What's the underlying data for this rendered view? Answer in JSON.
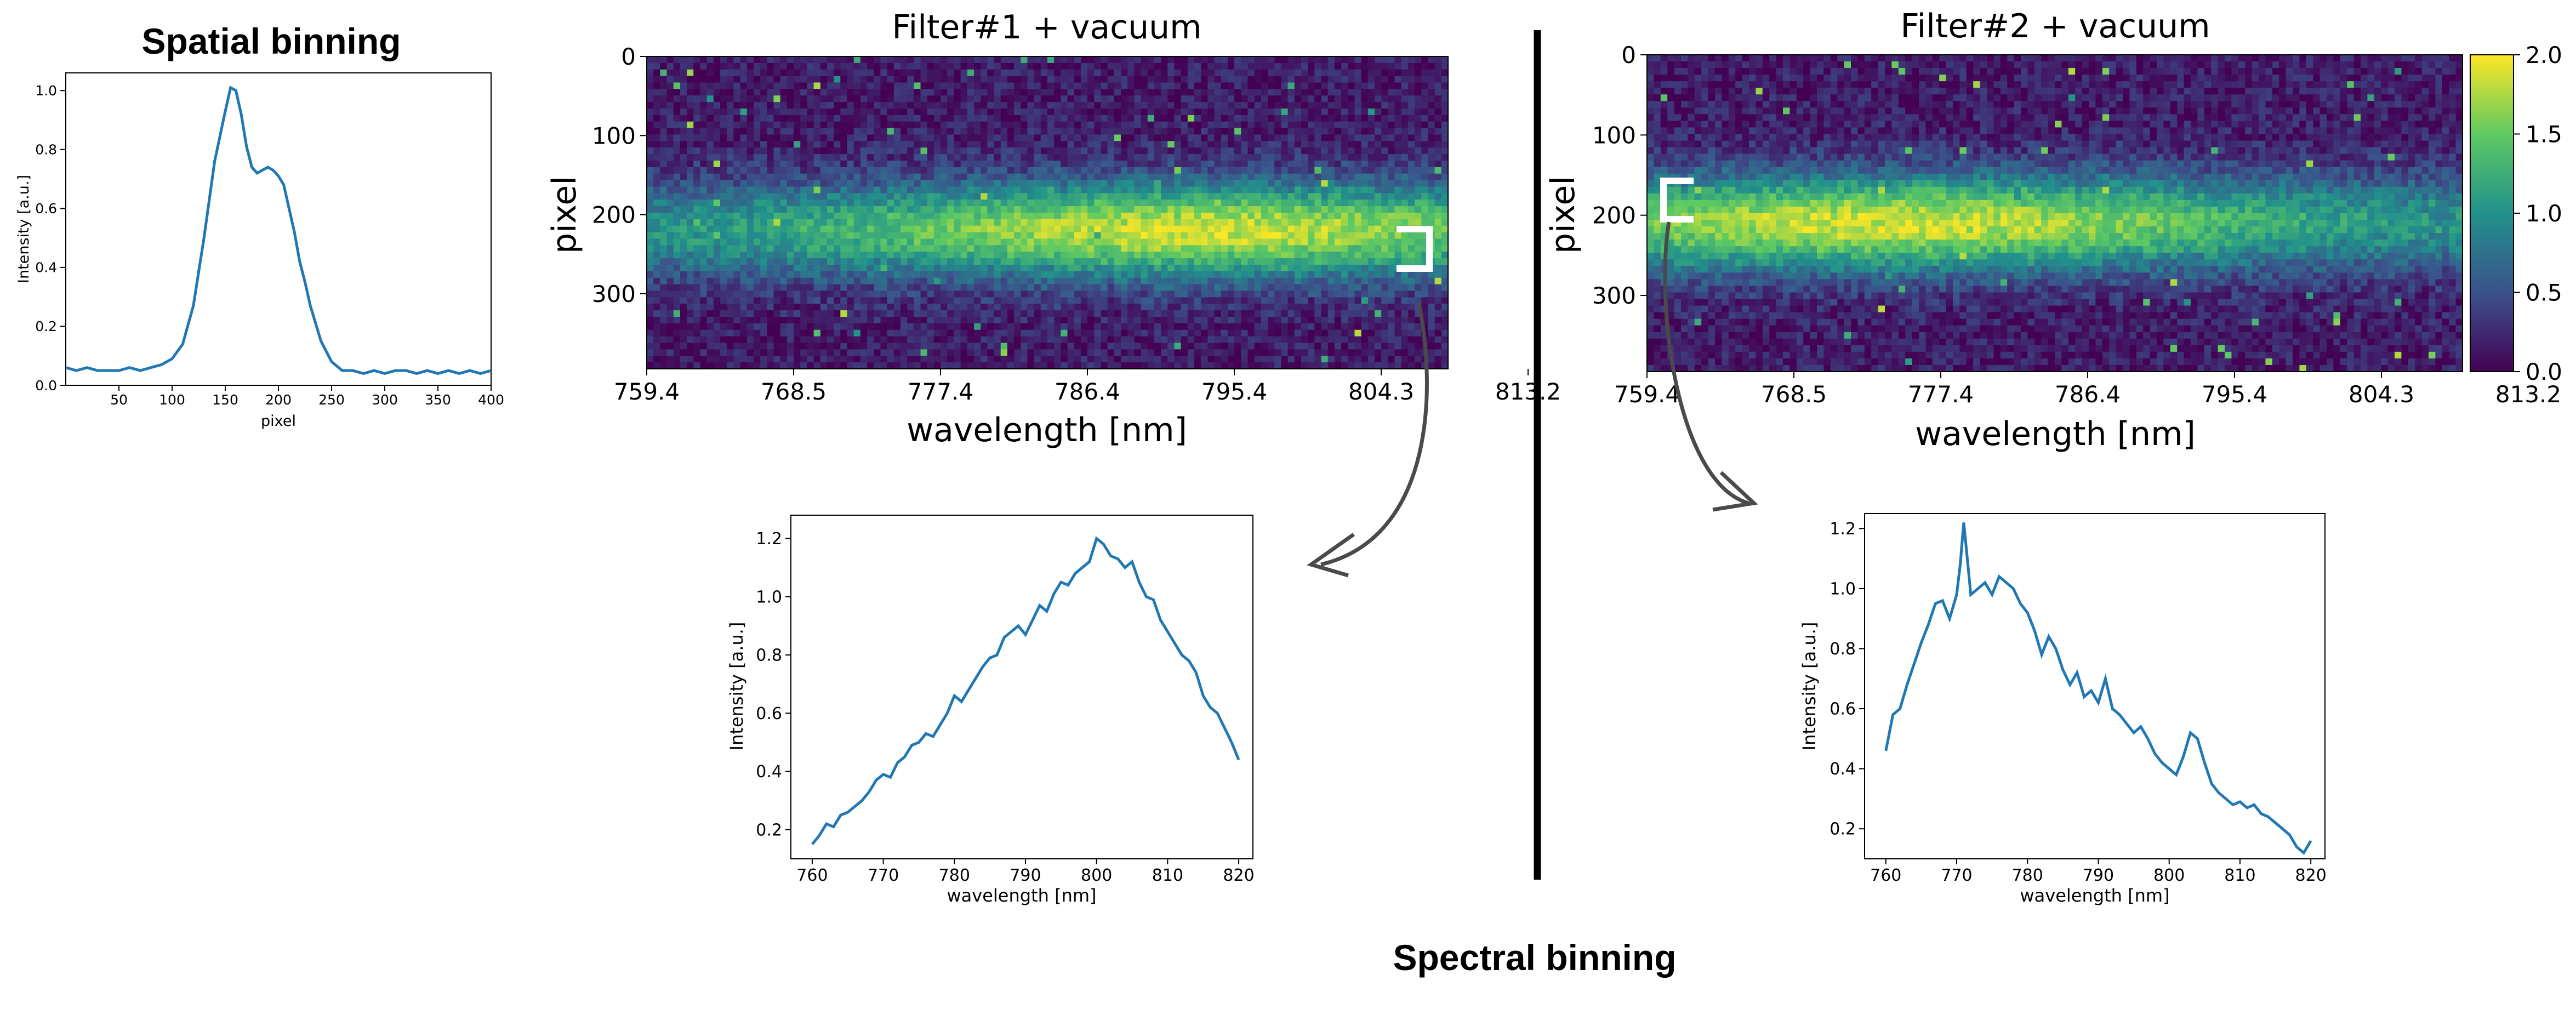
{
  "figure": {
    "heading_spatial": "Spatial binning",
    "heading_spectral": "Spectral binning"
  },
  "colors": {
    "line": "#1f77b4",
    "divider": "#000000",
    "arrow": "#4a4a4a"
  },
  "chart_data": [
    {
      "id": "spatial",
      "type": "line",
      "title": "Spatial binning",
      "xlabel": "pixel",
      "ylabel": "Intensity [a.u.]",
      "xlim": [
        0,
        400
      ],
      "ylim": [
        0,
        1.06
      ],
      "xticks": [
        50,
        100,
        150,
        200,
        250,
        300,
        350,
        400
      ],
      "yticks": [
        0.0,
        0.2,
        0.4,
        0.6,
        0.8,
        1.0
      ],
      "x": [
        0,
        10,
        20,
        30,
        40,
        50,
        60,
        70,
        80,
        90,
        100,
        110,
        120,
        130,
        140,
        150,
        155,
        160,
        165,
        170,
        175,
        180,
        185,
        190,
        195,
        200,
        205,
        210,
        215,
        220,
        225,
        230,
        240,
        250,
        260,
        270,
        280,
        290,
        300,
        310,
        320,
        330,
        340,
        350,
        360,
        370,
        380,
        390,
        400
      ],
      "y": [
        0.06,
        0.05,
        0.06,
        0.05,
        0.05,
        0.05,
        0.06,
        0.05,
        0.06,
        0.07,
        0.09,
        0.14,
        0.27,
        0.5,
        0.76,
        0.93,
        1.01,
        1.0,
        0.92,
        0.81,
        0.74,
        0.72,
        0.73,
        0.74,
        0.73,
        0.71,
        0.68,
        0.6,
        0.52,
        0.42,
        0.35,
        0.27,
        0.15,
        0.08,
        0.05,
        0.05,
        0.04,
        0.05,
        0.04,
        0.05,
        0.05,
        0.04,
        0.05,
        0.04,
        0.05,
        0.04,
        0.05,
        0.04,
        0.05
      ]
    },
    {
      "id": "filter1-image",
      "type": "heatmap",
      "title": "Filter#1 + vacuum",
      "xlabel": "wavelength [nm]",
      "ylabel": "pixel",
      "xtick_labels": [
        "759.4",
        "768.5",
        "777.4",
        "786.4",
        "795.4",
        "804.3",
        "813.2"
      ],
      "yticks": [
        0,
        100,
        200,
        300
      ],
      "ylim": [
        0,
        395
      ],
      "band_center_row": 220,
      "band_width_rows": 60,
      "peak_wavelength_fraction": 0.68
    },
    {
      "id": "filter2-image",
      "type": "heatmap",
      "title": "Filter#2 + vacuum",
      "xlabel": "wavelength [nm]",
      "ylabel": "pixel",
      "xtick_labels": [
        "759.4",
        "768.5",
        "777.4",
        "786.4",
        "795.4",
        "804.3",
        "813.2"
      ],
      "yticks": [
        0,
        100,
        200,
        300
      ],
      "ylim": [
        0,
        395
      ],
      "band_center_row": 210,
      "band_width_rows": 60,
      "peak_wavelength_fraction": 0.3,
      "colorbar": {
        "ticks": [
          "0.0",
          "0.5",
          "1.0",
          "1.5",
          "2.0"
        ],
        "range": [
          0,
          2.0
        ]
      }
    },
    {
      "id": "spectrum1",
      "type": "line",
      "xlabel": "wavelength [nm]",
      "ylabel": "Intensity [a.u.]",
      "xlim": [
        757,
        822
      ],
      "ylim": [
        0.1,
        1.28
      ],
      "xticks": [
        760,
        770,
        780,
        790,
        800,
        810,
        820
      ],
      "yticks": [
        0.2,
        0.4,
        0.6,
        0.8,
        1.0,
        1.2
      ],
      "x": [
        760,
        761,
        762,
        763,
        764,
        765,
        766,
        767,
        768,
        769,
        770,
        771,
        772,
        773,
        774,
        775,
        776,
        777,
        778,
        779,
        780,
        781,
        782,
        783,
        784,
        785,
        786,
        787,
        788,
        789,
        790,
        791,
        792,
        793,
        794,
        795,
        796,
        797,
        798,
        799,
        800,
        801,
        802,
        803,
        804,
        805,
        806,
        807,
        808,
        809,
        810,
        811,
        812,
        813,
        814,
        815,
        816,
        817,
        818,
        819,
        820
      ],
      "y": [
        0.15,
        0.18,
        0.22,
        0.21,
        0.25,
        0.26,
        0.28,
        0.3,
        0.33,
        0.37,
        0.39,
        0.38,
        0.43,
        0.45,
        0.49,
        0.5,
        0.53,
        0.52,
        0.56,
        0.6,
        0.66,
        0.64,
        0.68,
        0.72,
        0.76,
        0.79,
        0.8,
        0.86,
        0.88,
        0.9,
        0.87,
        0.92,
        0.97,
        0.95,
        1.01,
        1.05,
        1.04,
        1.08,
        1.1,
        1.12,
        1.2,
        1.18,
        1.14,
        1.13,
        1.1,
        1.12,
        1.05,
        1.0,
        0.99,
        0.92,
        0.88,
        0.84,
        0.8,
        0.78,
        0.74,
        0.66,
        0.62,
        0.6,
        0.55,
        0.5,
        0.44
      ]
    },
    {
      "id": "spectrum2",
      "type": "line",
      "xlabel": "wavelength [nm]",
      "ylabel": "Intensity [a.u.]",
      "xlim": [
        757,
        822
      ],
      "ylim": [
        0.1,
        1.25
      ],
      "xticks": [
        760,
        770,
        780,
        790,
        800,
        810,
        820
      ],
      "yticks": [
        0.2,
        0.4,
        0.6,
        0.8,
        1.0,
        1.2
      ],
      "x": [
        760,
        761,
        762,
        763,
        764,
        765,
        766,
        767,
        768,
        769,
        770,
        770.5,
        771,
        771.5,
        772,
        773,
        774,
        775,
        776,
        777,
        778,
        779,
        780,
        781,
        782,
        783,
        784,
        785,
        786,
        787,
        788,
        789,
        790,
        791,
        792,
        793,
        794,
        795,
        796,
        797,
        798,
        799,
        800,
        801,
        802,
        803,
        804,
        805,
        806,
        807,
        808,
        809,
        810,
        811,
        812,
        813,
        814,
        815,
        816,
        817,
        818,
        819,
        820
      ],
      "y": [
        0.46,
        0.58,
        0.6,
        0.68,
        0.75,
        0.82,
        0.88,
        0.95,
        0.96,
        0.9,
        0.98,
        1.08,
        1.22,
        1.1,
        0.98,
        1.0,
        1.02,
        0.98,
        1.04,
        1.02,
        1.0,
        0.95,
        0.92,
        0.86,
        0.78,
        0.84,
        0.8,
        0.73,
        0.68,
        0.72,
        0.64,
        0.66,
        0.62,
        0.7,
        0.6,
        0.58,
        0.55,
        0.52,
        0.54,
        0.5,
        0.45,
        0.42,
        0.4,
        0.38,
        0.44,
        0.52,
        0.5,
        0.42,
        0.35,
        0.32,
        0.3,
        0.28,
        0.29,
        0.27,
        0.28,
        0.25,
        0.24,
        0.22,
        0.2,
        0.18,
        0.14,
        0.12,
        0.16
      ]
    }
  ]
}
